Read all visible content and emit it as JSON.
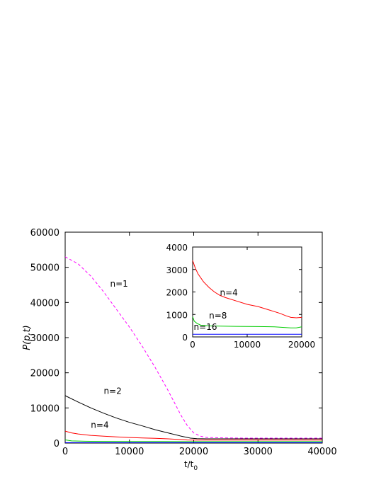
{
  "chart_data": [
    {
      "type": "line",
      "role": "main",
      "xlabel": "t/t",
      "xlabel_sub": "0",
      "ylabel": "P(p,t)",
      "xlim": [
        0,
        40000
      ],
      "ylim": [
        0,
        60000
      ],
      "xticks": [
        0,
        10000,
        20000,
        30000,
        40000
      ],
      "yticks": [
        0,
        10000,
        20000,
        30000,
        40000,
        50000,
        60000
      ],
      "grid": false,
      "annotations": [
        {
          "text": "n=1",
          "x": 7000,
          "y": 44500
        },
        {
          "text": "n=2",
          "x": 6000,
          "y": 14000
        },
        {
          "text": "n=4",
          "x": 4000,
          "y": 4300
        }
      ],
      "series": [
        {
          "name": "n=1",
          "color": "#ff00ff",
          "dash": true,
          "x": [
            0,
            2000,
            4000,
            6000,
            8000,
            10000,
            12000,
            14000,
            16000,
            17000,
            18000,
            19000,
            20000,
            21000,
            22000,
            24000,
            26000,
            28000,
            30000,
            35000,
            40000
          ],
          "y": [
            53000,
            51000,
            47500,
            43000,
            38000,
            33000,
            27500,
            21500,
            15000,
            11500,
            8000,
            5000,
            2900,
            2000,
            1600,
            1500,
            1450,
            1400,
            1400,
            1400,
            1400
          ]
        },
        {
          "name": "n=2",
          "color": "#000000",
          "dash": false,
          "x": [
            0,
            2000,
            4000,
            6000,
            8000,
            10000,
            12000,
            14000,
            16000,
            18000,
            19500,
            20500,
            22000,
            25000,
            30000,
            35000,
            40000
          ],
          "y": [
            13500,
            11700,
            10000,
            8500,
            7100,
            5900,
            4900,
            3800,
            2900,
            2000,
            1400,
            1250,
            1200,
            1200,
            1200,
            1200,
            1200
          ]
        },
        {
          "name": "n=4",
          "color": "#ff0000",
          "dash": false,
          "x": [
            0,
            1000,
            2000,
            4000,
            6000,
            8000,
            10000,
            12000,
            14000,
            16000,
            18000,
            19000,
            20000,
            22000,
            25000,
            30000,
            35000,
            40000
          ],
          "y": [
            3400,
            2900,
            2600,
            2200,
            1950,
            1750,
            1600,
            1450,
            1350,
            1200,
            1000,
            880,
            850,
            850,
            850,
            850,
            850,
            850
          ]
        },
        {
          "name": "n=8",
          "color": "#00cc00",
          "dash": false,
          "x": [
            0,
            1000,
            3000,
            6000,
            10000,
            15000,
            18000,
            20000,
            30000,
            40000
          ],
          "y": [
            900,
            620,
            520,
            480,
            460,
            450,
            430,
            420,
            420,
            420
          ]
        },
        {
          "name": "n=16",
          "color": "#0000ff",
          "dash": false,
          "x": [
            0,
            10000,
            20000,
            30000,
            40000
          ],
          "y": [
            120,
            120,
            120,
            120,
            120
          ]
        }
      ]
    },
    {
      "type": "line",
      "role": "inset",
      "xlim": [
        0,
        20000
      ],
      "ylim": [
        0,
        4000
      ],
      "xticks": [
        0,
        10000,
        20000
      ],
      "yticks": [
        0,
        1000,
        2000,
        3000,
        4000
      ],
      "grid": false,
      "annotations": [
        {
          "text": "n=4",
          "x": 5000,
          "y": 1850
        },
        {
          "text": "n=8",
          "x": 3000,
          "y": 820
        },
        {
          "text": "n=16",
          "x": 200,
          "y": 320
        }
      ],
      "series": [
        {
          "name": "n=4",
          "color": "#ff0000",
          "x": [
            0,
            500,
            1000,
            2000,
            3000,
            4000,
            5000,
            6000,
            8000,
            10000,
            12000,
            14000,
            16000,
            17000,
            18000,
            19000,
            20000
          ],
          "y": [
            3400,
            3050,
            2800,
            2450,
            2200,
            2000,
            1850,
            1750,
            1600,
            1450,
            1350,
            1200,
            1050,
            950,
            870,
            850,
            870
          ]
        },
        {
          "name": "n=8",
          "color": "#00cc00",
          "x": [
            0,
            300,
            800,
            1500,
            3000,
            5000,
            8000,
            12000,
            15000,
            18000,
            19000,
            20000
          ],
          "y": [
            900,
            700,
            600,
            520,
            490,
            480,
            470,
            460,
            450,
            400,
            400,
            450
          ]
        },
        {
          "name": "n=16",
          "color": "#0000ff",
          "x": [
            0,
            5000,
            10000,
            15000,
            20000
          ],
          "y": [
            120,
            120,
            120,
            120,
            120
          ]
        }
      ]
    }
  ]
}
